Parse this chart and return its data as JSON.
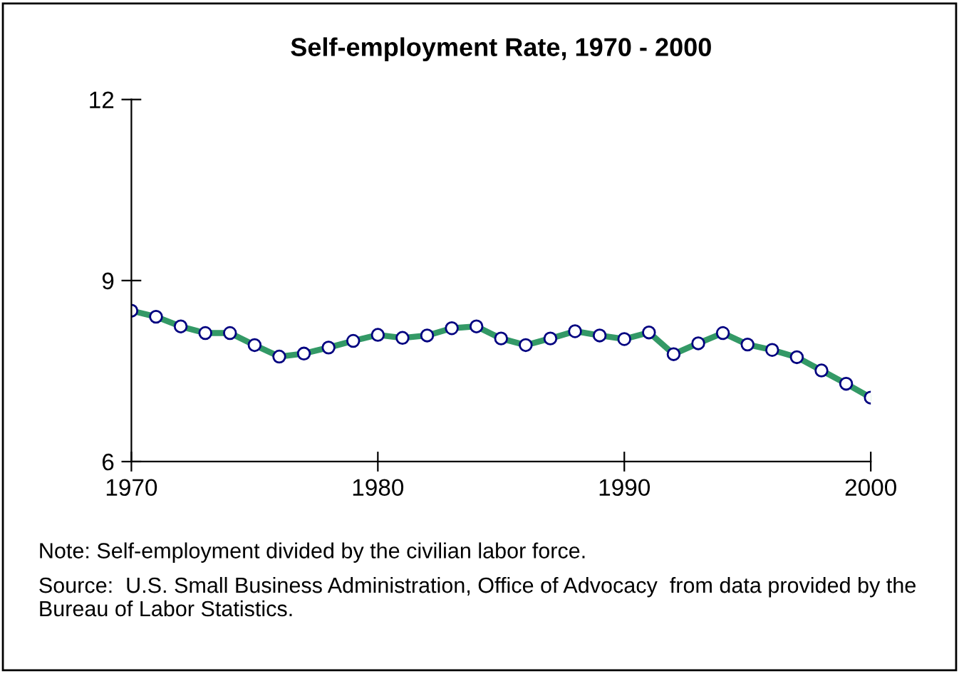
{
  "chart_data": {
    "type": "line",
    "title": "Self-employment Rate, 1970 - 2000",
    "x": [
      1970,
      1971,
      1972,
      1973,
      1974,
      1975,
      1976,
      1977,
      1978,
      1979,
      1980,
      1981,
      1982,
      1983,
      1984,
      1985,
      1986,
      1987,
      1988,
      1989,
      1990,
      1991,
      1992,
      1993,
      1994,
      1995,
      1996,
      1997,
      1998,
      1999,
      2000
    ],
    "series": [
      {
        "color": "#339966",
        "values": [
          8.5,
          8.4,
          8.24,
          8.13,
          8.13,
          7.93,
          7.74,
          7.79,
          7.89,
          8.0,
          8.1,
          8.05,
          8.09,
          8.21,
          8.24,
          8.04,
          7.93,
          8.04,
          8.16,
          8.09,
          8.03,
          8.14,
          7.78,
          7.96,
          8.13,
          7.94,
          7.85,
          7.73,
          7.51,
          7.29,
          7.06
        ]
      }
    ],
    "xlim": [
      1970,
      2000
    ],
    "xticks": [
      1970,
      1980,
      1990,
      2000
    ],
    "ylim": [
      6,
      12
    ],
    "yticks": [
      6,
      9,
      12
    ],
    "marker": "circle",
    "line_style": "solid",
    "grid": false,
    "legend": false,
    "annotations": [
      "Note: Self-employment divided by the civilian labor force.",
      "Source:  U.S. Small Business Administration, Office of Advocacy  from data provided by the Bureau of Labor Statistics."
    ]
  }
}
